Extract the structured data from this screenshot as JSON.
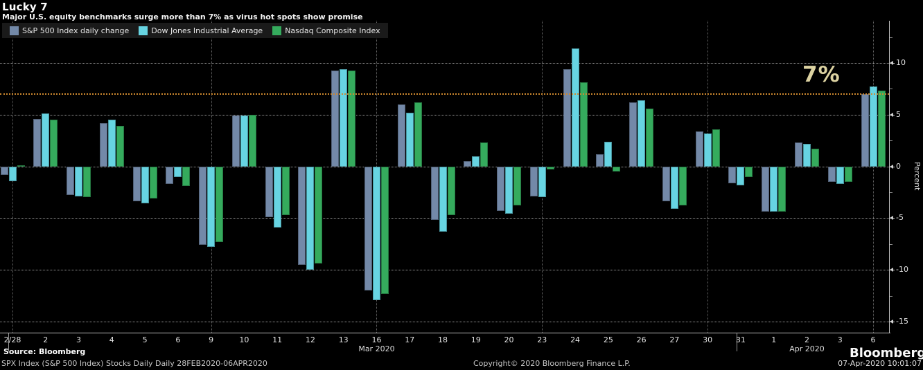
{
  "header": {
    "title": "Lucky 7",
    "subtitle": "Major U.S. equity benchmarks surge more than 7% as virus hot spots show promise"
  },
  "chart_data": {
    "type": "bar",
    "title": "Lucky 7",
    "subtitle": "Major U.S. equity benchmarks surge more than 7% as virus hot spots show promise",
    "ylabel": "Percent",
    "ylim": [
      -16.07,
      14.08
    ],
    "yticks_major": [
      10,
      5,
      0,
      -5,
      -10,
      -15
    ],
    "yticks_minor": [
      12.5,
      7.5,
      2.5,
      -2.5,
      -7.5,
      -12.5
    ],
    "grid": "dotted",
    "legend_position": "top-left",
    "categories": [
      "2/28",
      "2",
      "3",
      "4",
      "5",
      "6",
      "9",
      "10",
      "11",
      "12",
      "13",
      "16",
      "17",
      "18",
      "19",
      "20",
      "23",
      "24",
      "25",
      "26",
      "27",
      "30",
      "31",
      "1",
      "2",
      "3",
      "6"
    ],
    "month_labels": [
      {
        "text": "Mar 2020",
        "index": 11
      },
      {
        "text": "Apr 2020",
        "index": 24
      }
    ],
    "week_start_indices": [
      0,
      6,
      11,
      16,
      21,
      26
    ],
    "month_separator_indices": [
      0,
      22
    ],
    "series": [
      {
        "name": "S&P 500 Index daily change",
        "color": "#7389a8",
        "values": [
          -0.8,
          4.6,
          -2.8,
          4.2,
          -3.4,
          -1.7,
          -7.6,
          4.9,
          -4.9,
          -9.5,
          9.3,
          -12.0,
          6.0,
          -5.2,
          0.5,
          -4.3,
          -2.9,
          9.4,
          1.2,
          6.2,
          -3.4,
          3.4,
          -1.6,
          -4.4,
          2.3,
          -1.5,
          7.0
        ]
      },
      {
        "name": "Dow Jones Industrial Average",
        "color": "#67d4e2",
        "values": [
          -1.4,
          5.1,
          -2.9,
          4.5,
          -3.6,
          -1.0,
          -7.8,
          4.9,
          -5.9,
          -10.0,
          9.4,
          -12.9,
          5.2,
          -6.3,
          1.0,
          -4.6,
          -3.0,
          11.4,
          2.4,
          6.4,
          -4.1,
          3.2,
          -1.8,
          -4.4,
          2.2,
          -1.7,
          7.7
        ]
      },
      {
        "name": "Nasdaq Composite Index",
        "color": "#35ab5d",
        "values": [
          0.1,
          4.5,
          -3.0,
          3.9,
          -3.1,
          -1.9,
          -7.3,
          5.0,
          -4.7,
          -9.4,
          9.3,
          -12.3,
          6.2,
          -4.7,
          2.3,
          -3.8,
          -0.3,
          8.1,
          -0.5,
          5.6,
          -3.8,
          3.6,
          -1.0,
          -4.4,
          1.7,
          -1.5,
          7.3
        ]
      }
    ],
    "threshold": {
      "value": 7,
      "label": "7%",
      "line_color": "#d08a2f",
      "label_color": "#ddd3a2"
    }
  },
  "footer": {
    "source": "Source: Bloomberg",
    "source_detail": "SPX Index (S&P 500 Index) Stocks Daily  Daily 28FEB2020-06APR2020",
    "copyright": "Copyright© 2020 Bloomberg Finance L.P.",
    "brand": "Bloomberg",
    "timestamp": "07-Apr-2020 10:01:07"
  }
}
